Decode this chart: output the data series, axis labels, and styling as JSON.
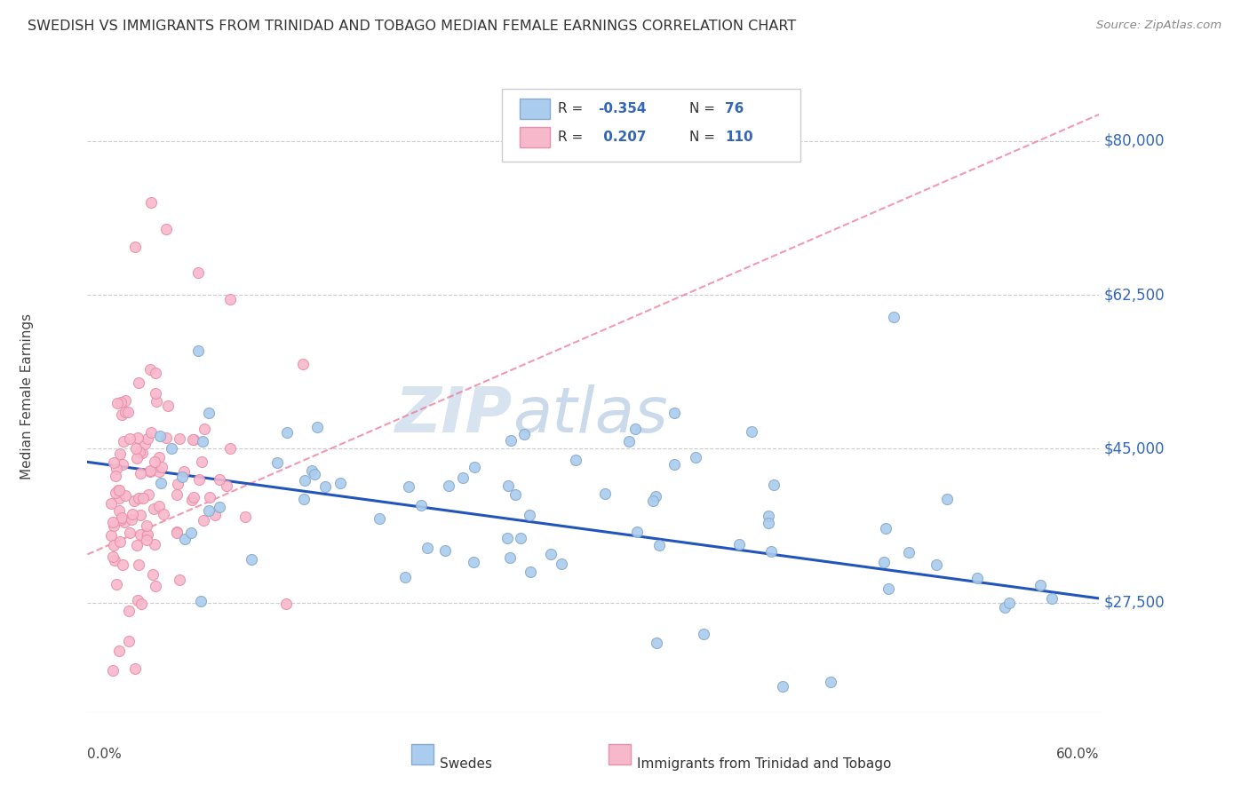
{
  "title": "SWEDISH VS IMMIGRANTS FROM TRINIDAD AND TOBAGO MEDIAN FEMALE EARNINGS CORRELATION CHART",
  "source": "Source: ZipAtlas.com",
  "ylabel": "Median Female Earnings",
  "ylim": [
    15000,
    87000
  ],
  "xlim": [
    -0.01,
    0.63
  ],
  "watermark": "ZIPatlas",
  "legend_R1": "-0.354",
  "legend_N1": "76",
  "legend_R2": "0.207",
  "legend_N2": "110",
  "swedes_color": "#aaccee",
  "swedes_edge": "#88aacc",
  "tt_color": "#f8b8cc",
  "tt_edge": "#e890aa",
  "trend_swedes_color": "#2255bb",
  "trend_tt_color": "#ee7799",
  "background": "#ffffff",
  "grid_color": "#cccccc",
  "ytick_vals": [
    27500,
    45000,
    62500,
    80000
  ],
  "ytick_labels": [
    "$27,500",
    "$45,000",
    "$62,500",
    "$80,000"
  ]
}
